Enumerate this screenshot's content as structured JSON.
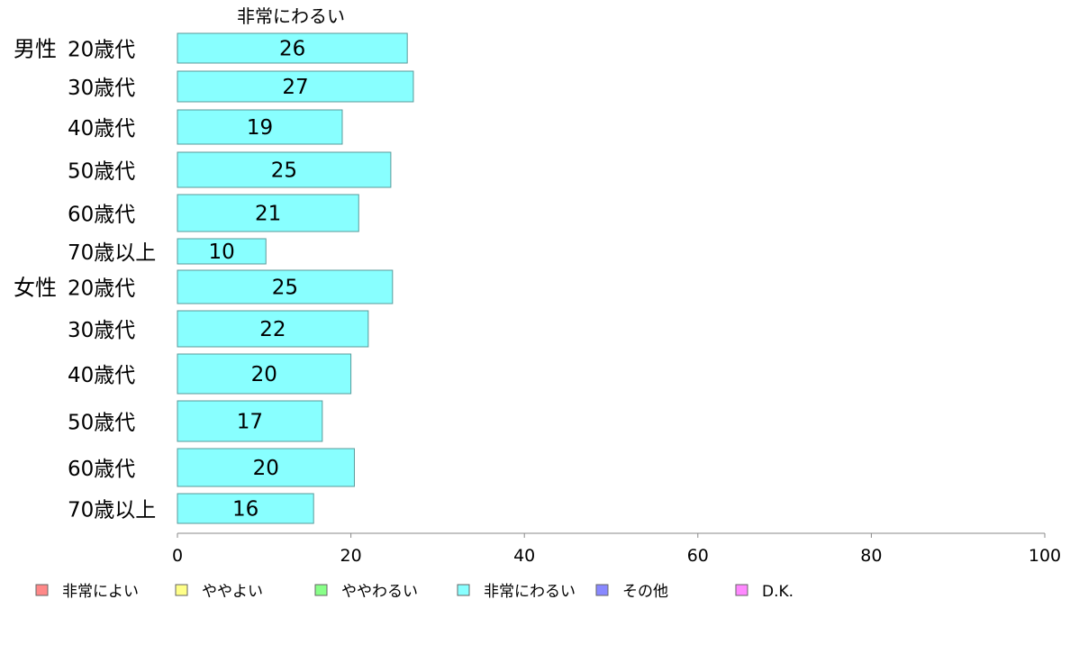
{
  "chart_data": {
    "type": "bar",
    "orientation": "horizontal",
    "title": "",
    "series_title": "非常にわるい",
    "xlabel": "",
    "ylabel": "",
    "xlim": [
      0,
      100
    ],
    "x_ticks": [
      "0",
      "20",
      "40",
      "60",
      "80",
      "100"
    ],
    "grid": false,
    "legend_position": "bottom",
    "groups": [
      {
        "name": "男性"
      },
      {
        "name": "女性"
      }
    ],
    "categories": [
      {
        "group": 0,
        "label": "20歳代"
      },
      {
        "group": 0,
        "label": "30歳代"
      },
      {
        "group": 0,
        "label": "40歳代"
      },
      {
        "group": 0,
        "label": "50歳代"
      },
      {
        "group": 0,
        "label": "60歳代"
      },
      {
        "group": 0,
        "label": "70歳以上"
      },
      {
        "group": 1,
        "label": "20歳代"
      },
      {
        "group": 1,
        "label": "30歳代"
      },
      {
        "group": 1,
        "label": "40歳代"
      },
      {
        "group": 1,
        "label": "50歳代"
      },
      {
        "group": 1,
        "label": "60歳代"
      },
      {
        "group": 1,
        "label": "70歳以上"
      }
    ],
    "series": [
      {
        "name": "非常にわるい",
        "color": "#88ffff",
        "values": [
          26.5,
          27.2,
          19.0,
          24.6,
          20.9,
          10.2,
          24.8,
          22.0,
          20.0,
          16.7,
          20.4,
          15.7
        ],
        "value_labels": [
          "26",
          "27",
          "19",
          "25",
          "21",
          "10",
          "25",
          "22",
          "20",
          "17",
          "20",
          "16"
        ]
      }
    ],
    "legend": [
      {
        "label": "非常によい",
        "color": "#ff8888"
      },
      {
        "label": "ややよい",
        "color": "#ffff88"
      },
      {
        "label": "ややわるい",
        "color": "#88ff88"
      },
      {
        "label": "非常にわるい",
        "color": "#88ffff"
      },
      {
        "label": "その他",
        "color": "#8888ff"
      },
      {
        "label": "D.K.",
        "color": "#ff88ff"
      }
    ],
    "colors": {
      "bar_stroke": "#5a9a9a",
      "axis": "#888888"
    }
  }
}
